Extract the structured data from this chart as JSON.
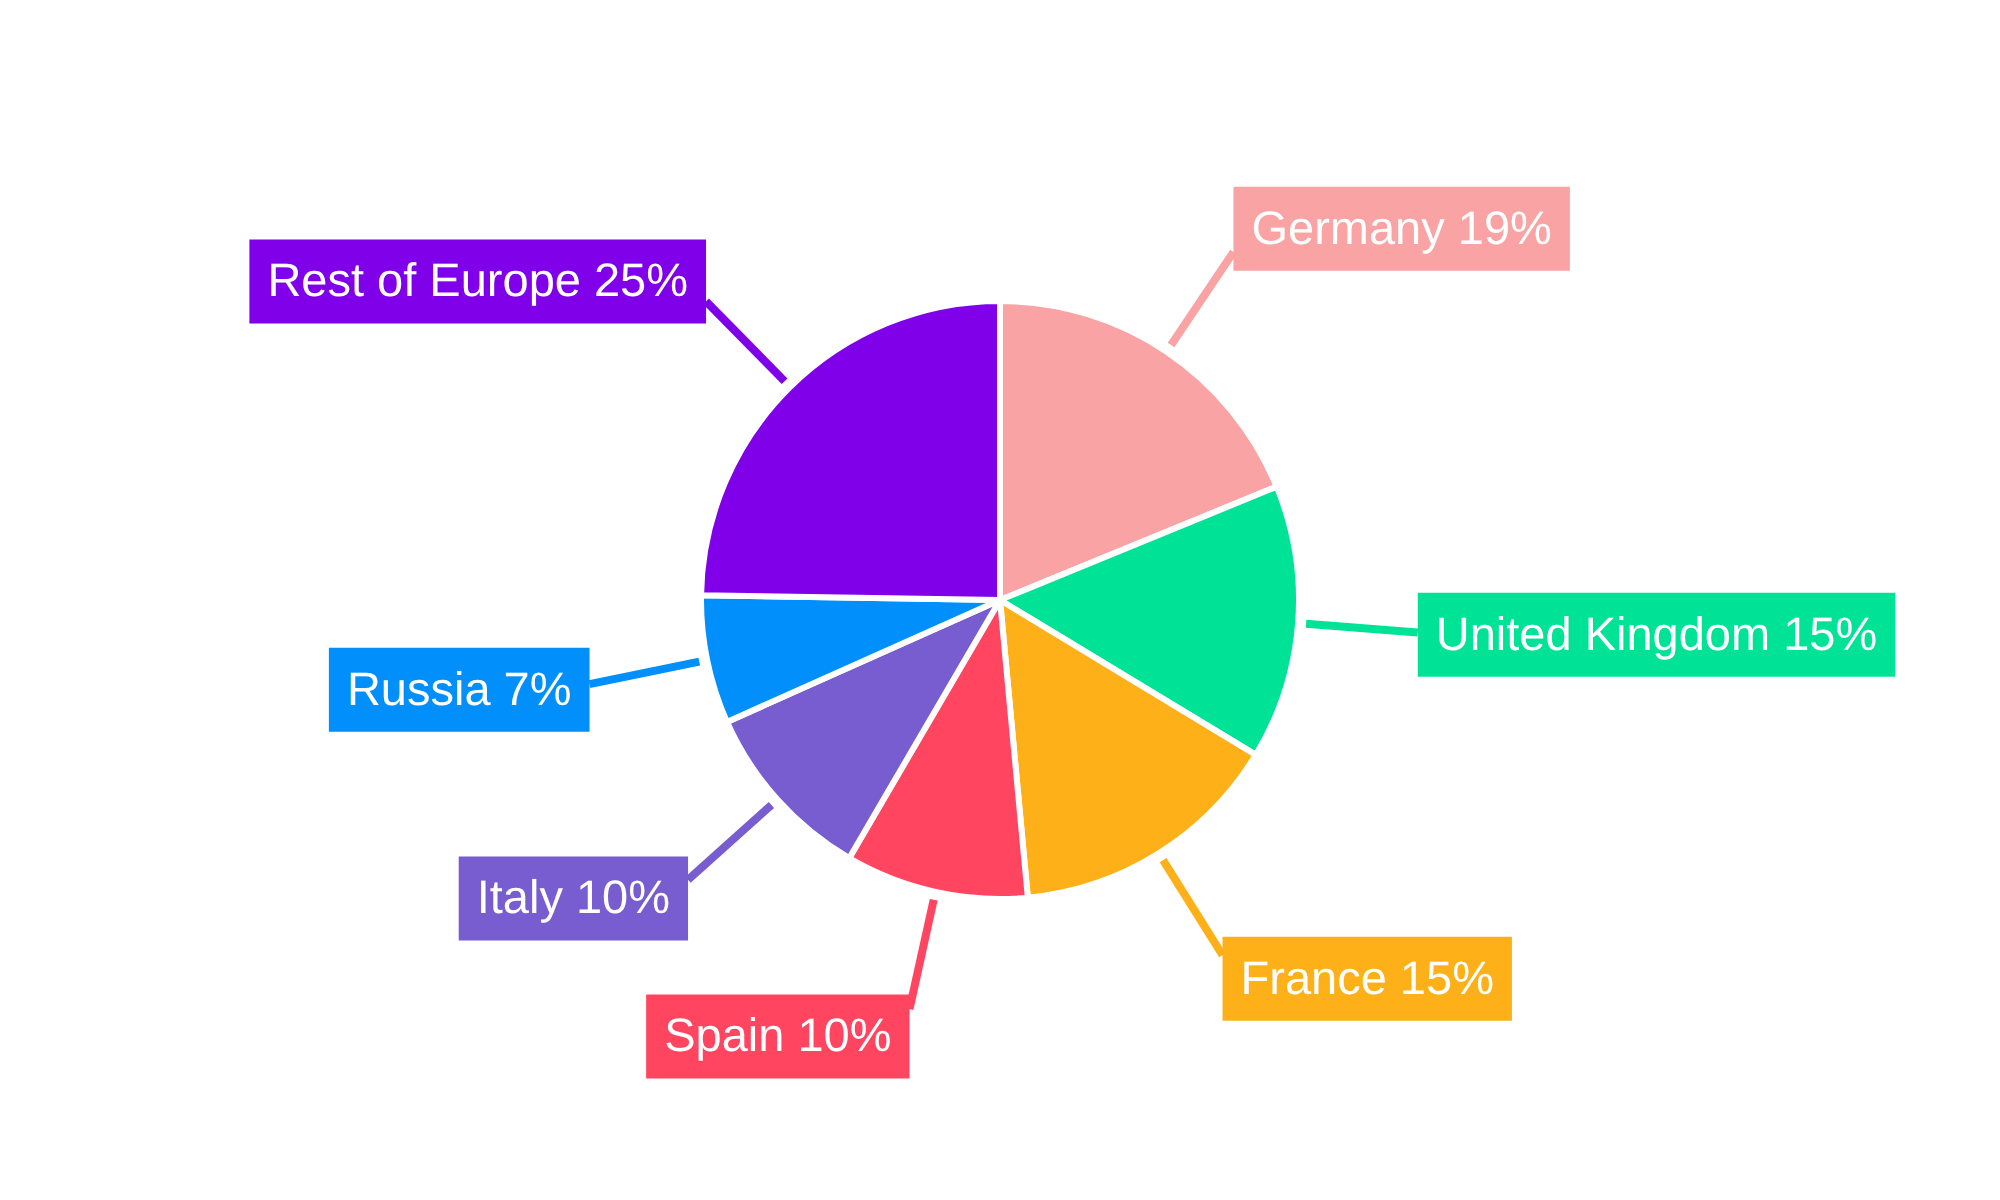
{
  "chart_data": {
    "type": "pie",
    "categories": [
      "Germany",
      "United Kingdom",
      "France",
      "Spain",
      "Italy",
      "Russia",
      "Rest of Europe"
    ],
    "values": [
      19,
      15,
      15,
      10,
      10,
      7,
      25
    ],
    "value_labels": [
      "19%",
      "15%",
      "15%",
      "10%",
      "10%",
      "7%",
      "25%"
    ],
    "colors": [
      "#f9a3a4",
      "#00e396",
      "#feb019",
      "#ff4560",
      "#775dd0",
      "#008ffb",
      "#7f00e9"
    ]
  }
}
